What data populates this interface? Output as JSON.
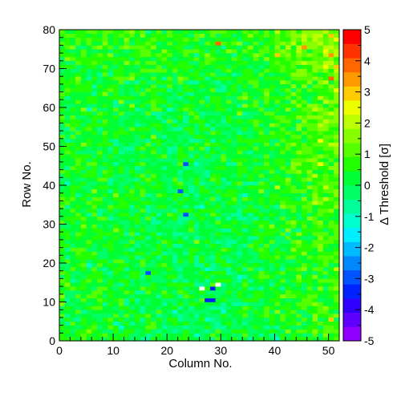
{
  "chart_data": {
    "type": "heatmap",
    "title": "",
    "xlabel": "Column No.",
    "ylabel": "Row No.",
    "zlabel": "Δ Threshold [σ]",
    "x_range": [
      0,
      52
    ],
    "y_range": [
      0,
      80
    ],
    "z_range": [
      -5,
      5
    ],
    "x_ticks": [
      0,
      10,
      20,
      30,
      40,
      50
    ],
    "y_ticks": [
      0,
      10,
      20,
      30,
      40,
      50,
      60,
      70,
      80
    ],
    "z_ticks": [
      -5,
      -4,
      -3,
      -2,
      -1,
      0,
      1,
      2,
      3,
      4,
      5
    ],
    "x_tick_labels": [
      "0",
      "10",
      "20",
      "30",
      "40",
      "50"
    ],
    "y_tick_labels": [
      "0",
      "10",
      "20",
      "30",
      "40",
      "50",
      "60",
      "70",
      "80"
    ],
    "z_tick_labels": [
      "-5",
      "-4",
      "-3",
      "-2",
      "-1",
      "0",
      "1",
      "2",
      "3",
      "4",
      "5"
    ],
    "grid": false,
    "legend": "colorbar-right",
    "palette": [
      "#8f00ff",
      "#5f00ff",
      "#2f00ff",
      "#0022ff",
      "#0055ff",
      "#0088ff",
      "#00bbff",
      "#00eeff",
      "#00ffcc",
      "#00ff99",
      "#00ff66",
      "#00ff33",
      "#22ff00",
      "#55ff00",
      "#88ff00",
      "#bbff00",
      "#eeff00",
      "#ffcc00",
      "#ff9900",
      "#ff6600",
      "#ff3300",
      "#ff0000"
    ],
    "cols": 52,
    "rows": 80,
    "description_of_values": "pixel-by-pixel threshold deviation; mostly between -1 and 1 sigma; higher values near top-right corner and right edge; a few cells near -3 to -4 sigma; white (empty) cells near column 27-29, row 13-14",
    "notable_cells": [
      {
        "col": 26,
        "row": 13,
        "value": null
      },
      {
        "col": 29,
        "row": 14,
        "value": null
      },
      {
        "col": 28,
        "row": 13,
        "value": -3.2
      },
      {
        "col": 27,
        "row": 10,
        "value": -3.4
      },
      {
        "col": 28,
        "row": 10,
        "value": -3.4
      },
      {
        "col": 23,
        "row": 32,
        "value": -3.0
      },
      {
        "col": 22,
        "row": 38,
        "value": -3.1
      },
      {
        "col": 23,
        "row": 45,
        "value": -3.0
      },
      {
        "col": 16,
        "row": 17,
        "value": -3.0
      },
      {
        "col": 40,
        "row": 73,
        "value": 3.0
      },
      {
        "col": 50,
        "row": 73,
        "value": 3.5
      },
      {
        "col": 50,
        "row": 67,
        "value": 4.0
      },
      {
        "col": 45,
        "row": 75,
        "value": 3.5
      },
      {
        "col": 29,
        "row": 76,
        "value": 4.0
      },
      {
        "col": 50,
        "row": 5,
        "value": 3.0
      }
    ]
  }
}
